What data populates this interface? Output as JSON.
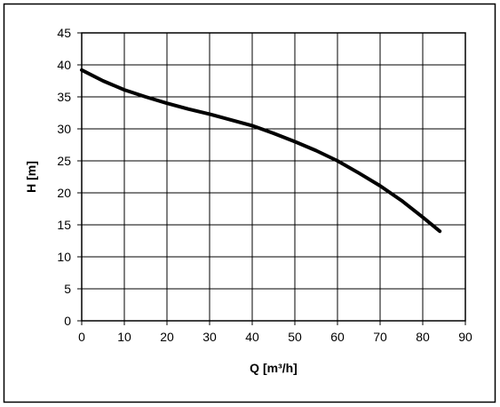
{
  "chart_data": {
    "type": "line",
    "title": "",
    "xlabel": "Q [m³/h]",
    "ylabel": "H [m]",
    "xlim": [
      0,
      90
    ],
    "ylim": [
      0,
      45
    ],
    "xticks": [
      0,
      10,
      20,
      30,
      40,
      50,
      60,
      70,
      80,
      90
    ],
    "yticks": [
      0,
      5,
      10,
      15,
      20,
      25,
      30,
      35,
      40,
      45
    ],
    "grid": true,
    "legend": "none",
    "series": [
      {
        "color": "#000000",
        "x": [
          0,
          5,
          10,
          15,
          20,
          25,
          30,
          35,
          40,
          45,
          50,
          55,
          60,
          65,
          70,
          75,
          80,
          84
        ],
        "y": [
          39.2,
          37.5,
          36.1,
          35.0,
          34.0,
          33.1,
          32.3,
          31.4,
          30.5,
          29.3,
          28.0,
          26.6,
          25.0,
          23.1,
          21.1,
          18.8,
          16.2,
          14.0
        ]
      }
    ]
  }
}
